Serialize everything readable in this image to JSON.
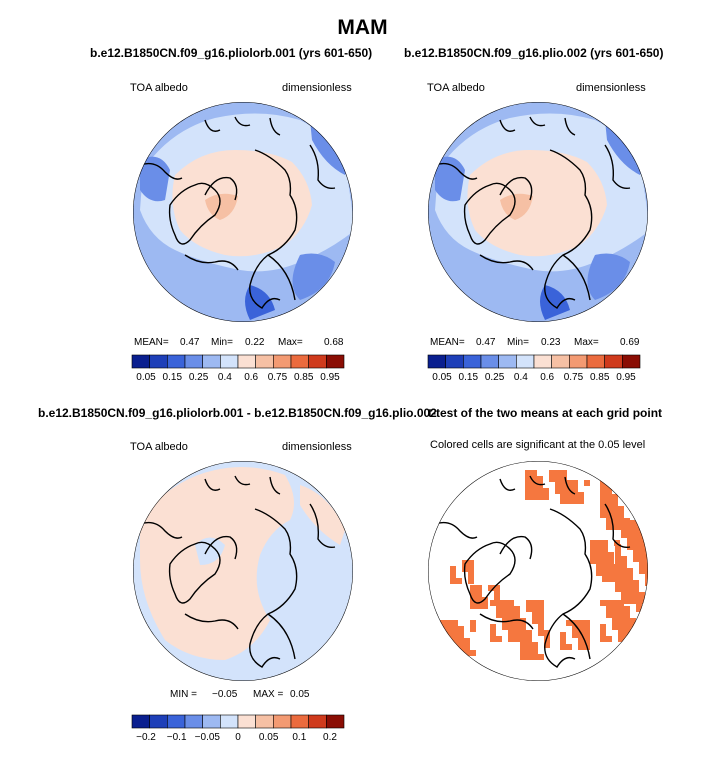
{
  "page": {
    "title": "MAM"
  },
  "chart_data": [
    {
      "type": "heatmap",
      "projection": "polar-stereographic (north pole)",
      "title": "b.e12.B1850CN.f09_g16.pliolorb.001 (yrs 601-650)",
      "left_label": "TOA albedo",
      "right_label": "dimensionless",
      "stats": {
        "mean_label": "MEAN=",
        "mean": "0.47",
        "min_label": "Min=",
        "min": "0.22",
        "max_label": "Max=",
        "max": "0.68"
      },
      "colorbar": {
        "colors": [
          "#0a1f8f",
          "#1e3fb8",
          "#3a63d9",
          "#6a8ee8",
          "#9db9f2",
          "#d3e3fb",
          "#fbe0d3",
          "#f6c0a4",
          "#f39a72",
          "#eb6b3e",
          "#cf3a1c",
          "#8a0d04"
        ],
        "tick_labels": [
          "0.05",
          "0.15",
          "0.25",
          "0.4",
          "0.6",
          "0.75",
          "0.85",
          "0.95"
        ]
      }
    },
    {
      "type": "heatmap",
      "projection": "polar-stereographic (north pole)",
      "title": "b.e12.B1850CN.f09_g16.plio.002 (yrs 601-650)",
      "left_label": "TOA albedo",
      "right_label": "dimensionless",
      "stats": {
        "mean_label": "MEAN=",
        "mean": "0.47",
        "min_label": "Min=",
        "min": "0.23",
        "max_label": "Max=",
        "max": "0.69"
      },
      "colorbar": {
        "colors": [
          "#0a1f8f",
          "#1e3fb8",
          "#3a63d9",
          "#6a8ee8",
          "#9db9f2",
          "#d3e3fb",
          "#fbe0d3",
          "#f6c0a4",
          "#f39a72",
          "#eb6b3e",
          "#cf3a1c",
          "#8a0d04"
        ],
        "tick_labels": [
          "0.05",
          "0.15",
          "0.25",
          "0.4",
          "0.6",
          "0.75",
          "0.85",
          "0.95"
        ]
      }
    },
    {
      "type": "heatmap",
      "projection": "polar-stereographic (north pole)",
      "title": "b.e12.B1850CN.f09_g16.pliolorb.001 - b.e12.B1850CN.f09_g16.plio.002",
      "left_label": "TOA albedo",
      "right_label": "dimensionless",
      "stats": {
        "min_label": "MIN =",
        "min": "−0.05",
        "max_label": "MAX =",
        "max": "0.05"
      },
      "colorbar": {
        "colors": [
          "#0a1f8f",
          "#1e3fb8",
          "#3a63d9",
          "#6a8ee8",
          "#9db9f2",
          "#d3e3fb",
          "#fbe0d3",
          "#f6c0a4",
          "#f39a72",
          "#eb6b3e",
          "#cf3a1c",
          "#8a0d04"
        ],
        "tick_labels": [
          "−0.2",
          "−0.1",
          "−0.05",
          "0",
          "0.05",
          "0.1",
          "0.2"
        ]
      }
    },
    {
      "type": "heatmap",
      "projection": "polar-stereographic (north pole)",
      "title": "t-test of the two means at each grid point",
      "subtitle": "Colored cells are significant at the 0.05 level",
      "significance_color": "#f5773f"
    }
  ]
}
